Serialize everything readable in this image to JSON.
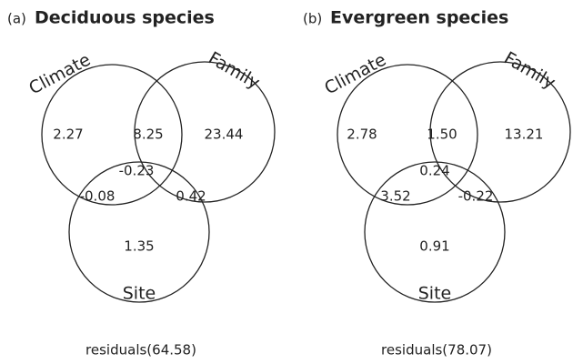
{
  "panels": [
    {
      "tag": "(a)",
      "title": "Deciduous species",
      "sets": [
        "Climate",
        "Family",
        "Site"
      ],
      "regions": {
        "climate": "2.27",
        "climate_family": "8.25",
        "family": "23.44",
        "all": "-0.23",
        "climate_site": "-0.08",
        "family_site": "0.42",
        "site": "1.35"
      },
      "residuals": "residuals(64.58)"
    },
    {
      "tag": "(b)",
      "title": "Evergreen species",
      "sets": [
        "Climate",
        "Family",
        "Site"
      ],
      "regions": {
        "climate": "2.78",
        "climate_family": "1.50",
        "family": "13.21",
        "all": "0.24",
        "climate_site": "3.52",
        "family_site": "-0.22",
        "site": "0.91"
      },
      "residuals": "residuals(78.07)"
    }
  ]
}
